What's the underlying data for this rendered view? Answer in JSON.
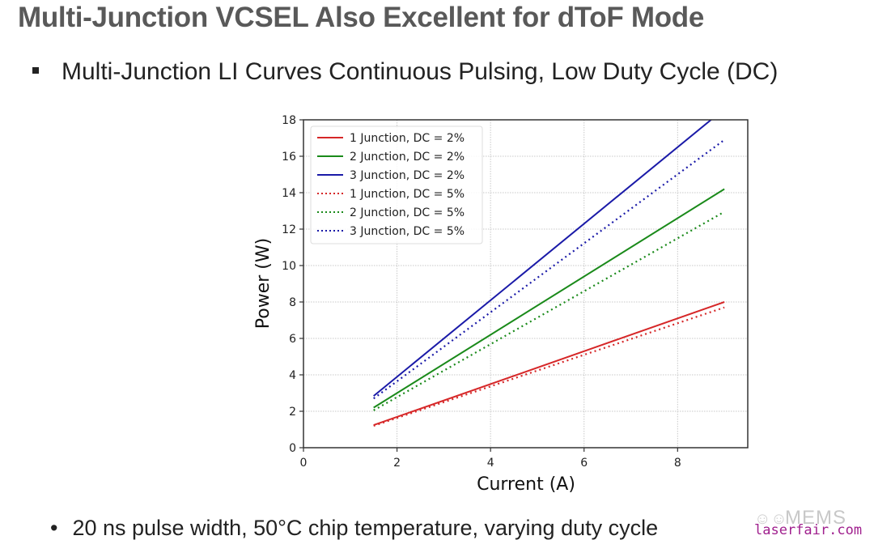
{
  "slide": {
    "title": "Multi-Junction VCSEL Also Excellent for dToF Mode",
    "bullet_main": "Multi-Junction LI Curves Continuous Pulsing, Low Duty Cycle (DC)",
    "bullet_note": "20 ns pulse width, 50°C chip temperature, varying duty cycle",
    "bullet_marker_main": "square-bullet-icon",
    "bullet_marker_note": "•",
    "watermark": {
      "brand": "MEMS",
      "site": "laserfair.com",
      "icon": "smiley-icon"
    }
  },
  "chart_data": {
    "type": "line",
    "title": "",
    "xlabel": "Current (A)",
    "ylabel": "Power (W)",
    "xlim": [
      0,
      9.5
    ],
    "ylim": [
      0,
      18
    ],
    "xticks": [
      0,
      2,
      4,
      6,
      8
    ],
    "yticks": [
      0,
      2,
      4,
      6,
      8,
      10,
      12,
      14,
      16,
      18
    ],
    "grid": true,
    "legend_position": "top-left",
    "x": [
      1.5,
      9.0
    ],
    "series": [
      {
        "name": "1 Junction, DC = 2%",
        "color": "#d62728",
        "style": "solid",
        "values": [
          1.24,
          8.0
        ]
      },
      {
        "name": "2 Junction, DC = 2%",
        "color": "#1a8a1a",
        "style": "solid",
        "values": [
          2.2,
          14.2
        ]
      },
      {
        "name": "3 Junction, DC = 2%",
        "color": "#1a1aa8",
        "style": "solid",
        "values": [
          2.84,
          18.6
        ]
      },
      {
        "name": "1 Junction, DC = 5%",
        "color": "#d62728",
        "style": "dotted",
        "values": [
          1.2,
          7.7
        ]
      },
      {
        "name": "2 Junction, DC = 5%",
        "color": "#1a8a1a",
        "style": "dotted",
        "values": [
          2.05,
          12.95
        ]
      },
      {
        "name": "3 Junction, DC = 5%",
        "color": "#1a1aa8",
        "style": "dotted",
        "values": [
          2.7,
          16.9
        ]
      }
    ]
  }
}
